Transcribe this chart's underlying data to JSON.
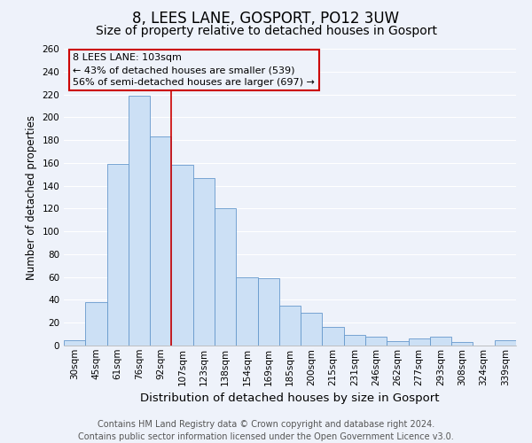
{
  "title": "8, LEES LANE, GOSPORT, PO12 3UW",
  "subtitle": "Size of property relative to detached houses in Gosport",
  "xlabel": "Distribution of detached houses by size in Gosport",
  "ylabel": "Number of detached properties",
  "bar_labels": [
    "30sqm",
    "45sqm",
    "61sqm",
    "76sqm",
    "92sqm",
    "107sqm",
    "123sqm",
    "138sqm",
    "154sqm",
    "169sqm",
    "185sqm",
    "200sqm",
    "215sqm",
    "231sqm",
    "246sqm",
    "262sqm",
    "277sqm",
    "293sqm",
    "308sqm",
    "324sqm",
    "339sqm"
  ],
  "bar_values": [
    5,
    38,
    159,
    219,
    183,
    158,
    147,
    120,
    60,
    59,
    35,
    29,
    16,
    9,
    8,
    4,
    6,
    8,
    3,
    0,
    5
  ],
  "bar_color": "#cce0f5",
  "bar_edge_color": "#6699cc",
  "vline_color": "#cc0000",
  "vline_x": 4.5,
  "ylim": [
    0,
    260
  ],
  "yticks": [
    0,
    20,
    40,
    60,
    80,
    100,
    120,
    140,
    160,
    180,
    200,
    220,
    240,
    260
  ],
  "annotation_line1": "8 LEES LANE: 103sqm",
  "annotation_line2": "← 43% of detached houses are smaller (539)",
  "annotation_line3": "56% of semi-detached houses are larger (697) →",
  "footer_line1": "Contains HM Land Registry data © Crown copyright and database right 2024.",
  "footer_line2": "Contains public sector information licensed under the Open Government Licence v3.0.",
  "background_color": "#eef2fa",
  "grid_color": "#ffffff",
  "title_fontsize": 12,
  "subtitle_fontsize": 10,
  "xlabel_fontsize": 9.5,
  "ylabel_fontsize": 8.5,
  "tick_fontsize": 7.5,
  "annotation_fontsize": 8,
  "footer_fontsize": 7
}
